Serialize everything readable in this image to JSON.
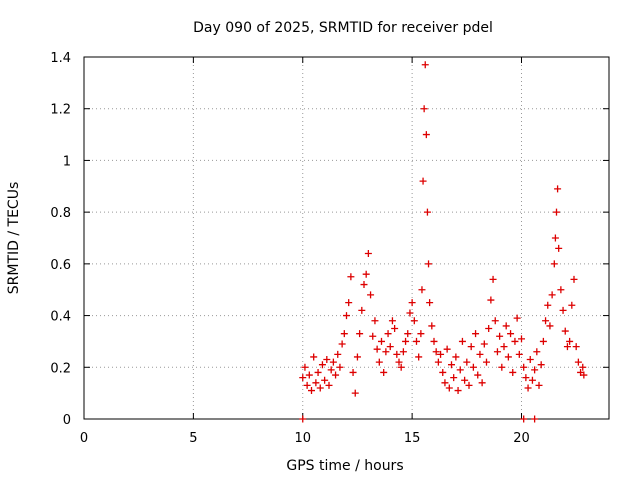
{
  "chart_data": {
    "type": "scatter",
    "title": "Day 090 of 2025, SRMTID for receiver pdel",
    "xlabel": "GPS time / hours",
    "ylabel": "SRMTID / TECUs",
    "xlim": [
      0,
      24
    ],
    "ylim": [
      0,
      1.4
    ],
    "xticks": [
      0,
      5,
      10,
      15,
      20
    ],
    "xtick_labels": [
      "0",
      "5",
      "10",
      "15",
      "20"
    ],
    "yticks": [
      0,
      0.2,
      0.4,
      0.6,
      0.8,
      1,
      1.2,
      1.4
    ],
    "ytick_labels": [
      "0",
      "0.2",
      "0.4",
      "0.6",
      "0.8",
      "1",
      "1.2",
      "1.4"
    ],
    "grid": true,
    "marker": "+",
    "series": [
      {
        "name": "SRMTID",
        "color": "#dd0000",
        "points": [
          [
            10.0,
            0.16
          ],
          [
            10.1,
            0.2
          ],
          [
            10.2,
            0.13
          ],
          [
            10.3,
            0.17
          ],
          [
            10.4,
            0.11
          ],
          [
            10.5,
            0.24
          ],
          [
            10.6,
            0.14
          ],
          [
            10.7,
            0.18
          ],
          [
            10.8,
            0.12
          ],
          [
            10.9,
            0.21
          ],
          [
            11.0,
            0.15
          ],
          [
            11.1,
            0.23
          ],
          [
            11.2,
            0.13
          ],
          [
            11.3,
            0.19
          ],
          [
            11.4,
            0.22
          ],
          [
            11.5,
            0.17
          ],
          [
            11.6,
            0.25
          ],
          [
            11.7,
            0.2
          ],
          [
            11.8,
            0.29
          ],
          [
            11.9,
            0.33
          ],
          [
            12.0,
            0.4
          ],
          [
            12.1,
            0.45
          ],
          [
            12.2,
            0.55
          ],
          [
            12.3,
            0.18
          ],
          [
            12.4,
            0.1
          ],
          [
            12.5,
            0.24
          ],
          [
            12.6,
            0.33
          ],
          [
            12.7,
            0.42
          ],
          [
            12.8,
            0.52
          ],
          [
            12.9,
            0.56
          ],
          [
            13.0,
            0.64
          ],
          [
            13.1,
            0.48
          ],
          [
            13.2,
            0.32
          ],
          [
            13.3,
            0.38
          ],
          [
            13.4,
            0.27
          ],
          [
            13.5,
            0.22
          ],
          [
            13.6,
            0.3
          ],
          [
            13.7,
            0.18
          ],
          [
            13.8,
            0.26
          ],
          [
            13.9,
            0.33
          ],
          [
            14.0,
            0.28
          ],
          [
            14.1,
            0.38
          ],
          [
            14.2,
            0.35
          ],
          [
            14.3,
            0.25
          ],
          [
            14.4,
            0.22
          ],
          [
            14.5,
            0.2
          ],
          [
            14.6,
            0.26
          ],
          [
            14.7,
            0.3
          ],
          [
            14.8,
            0.33
          ],
          [
            14.9,
            0.41
          ],
          [
            15.0,
            0.45
          ],
          [
            15.1,
            0.38
          ],
          [
            15.2,
            0.3
          ],
          [
            15.3,
            0.24
          ],
          [
            15.4,
            0.33
          ],
          [
            15.45,
            0.5
          ],
          [
            15.5,
            0.92
          ],
          [
            15.55,
            1.2
          ],
          [
            15.6,
            1.37
          ],
          [
            15.65,
            1.1
          ],
          [
            15.7,
            0.8
          ],
          [
            15.75,
            0.6
          ],
          [
            15.8,
            0.45
          ],
          [
            15.9,
            0.36
          ],
          [
            16.0,
            0.3
          ],
          [
            16.1,
            0.26
          ],
          [
            16.2,
            0.22
          ],
          [
            16.3,
            0.25
          ],
          [
            16.4,
            0.18
          ],
          [
            16.5,
            0.14
          ],
          [
            16.6,
            0.27
          ],
          [
            16.7,
            0.12
          ],
          [
            16.8,
            0.21
          ],
          [
            16.9,
            0.16
          ],
          [
            17.0,
            0.24
          ],
          [
            17.1,
            0.11
          ],
          [
            17.2,
            0.19
          ],
          [
            17.3,
            0.3
          ],
          [
            17.4,
            0.15
          ],
          [
            17.5,
            0.22
          ],
          [
            17.6,
            0.13
          ],
          [
            17.7,
            0.28
          ],
          [
            17.8,
            0.2
          ],
          [
            17.9,
            0.33
          ],
          [
            18.0,
            0.17
          ],
          [
            18.1,
            0.25
          ],
          [
            18.2,
            0.14
          ],
          [
            18.3,
            0.29
          ],
          [
            18.4,
            0.22
          ],
          [
            18.5,
            0.35
          ],
          [
            18.6,
            0.46
          ],
          [
            18.7,
            0.54
          ],
          [
            18.8,
            0.38
          ],
          [
            18.9,
            0.26
          ],
          [
            19.0,
            0.32
          ],
          [
            19.1,
            0.2
          ],
          [
            19.2,
            0.28
          ],
          [
            19.3,
            0.36
          ],
          [
            19.4,
            0.24
          ],
          [
            19.5,
            0.33
          ],
          [
            19.6,
            0.18
          ],
          [
            19.7,
            0.3
          ],
          [
            19.8,
            0.39
          ],
          [
            19.9,
            0.25
          ],
          [
            20.0,
            0.31
          ],
          [
            20.1,
            0.2
          ],
          [
            20.2,
            0.16
          ],
          [
            20.3,
            0.12
          ],
          [
            20.4,
            0.23
          ],
          [
            20.5,
            0.15
          ],
          [
            20.6,
            0.19
          ],
          [
            20.7,
            0.26
          ],
          [
            20.8,
            0.13
          ],
          [
            20.9,
            0.21
          ],
          [
            21.0,
            0.3
          ],
          [
            21.1,
            0.38
          ],
          [
            21.2,
            0.44
          ],
          [
            21.3,
            0.36
          ],
          [
            21.4,
            0.48
          ],
          [
            21.5,
            0.6
          ],
          [
            21.55,
            0.7
          ],
          [
            21.6,
            0.8
          ],
          [
            21.65,
            0.89
          ],
          [
            21.7,
            0.66
          ],
          [
            21.8,
            0.5
          ],
          [
            21.9,
            0.42
          ],
          [
            22.0,
            0.34
          ],
          [
            22.1,
            0.28
          ],
          [
            22.2,
            0.3
          ],
          [
            22.3,
            0.44
          ],
          [
            22.4,
            0.54
          ],
          [
            22.5,
            0.28
          ],
          [
            22.6,
            0.22
          ],
          [
            22.7,
            0.18
          ],
          [
            22.8,
            0.2
          ],
          [
            22.85,
            0.17
          ],
          [
            10.0,
            0.0
          ],
          [
            20.1,
            0.0
          ],
          [
            20.6,
            0.0
          ]
        ]
      }
    ]
  }
}
